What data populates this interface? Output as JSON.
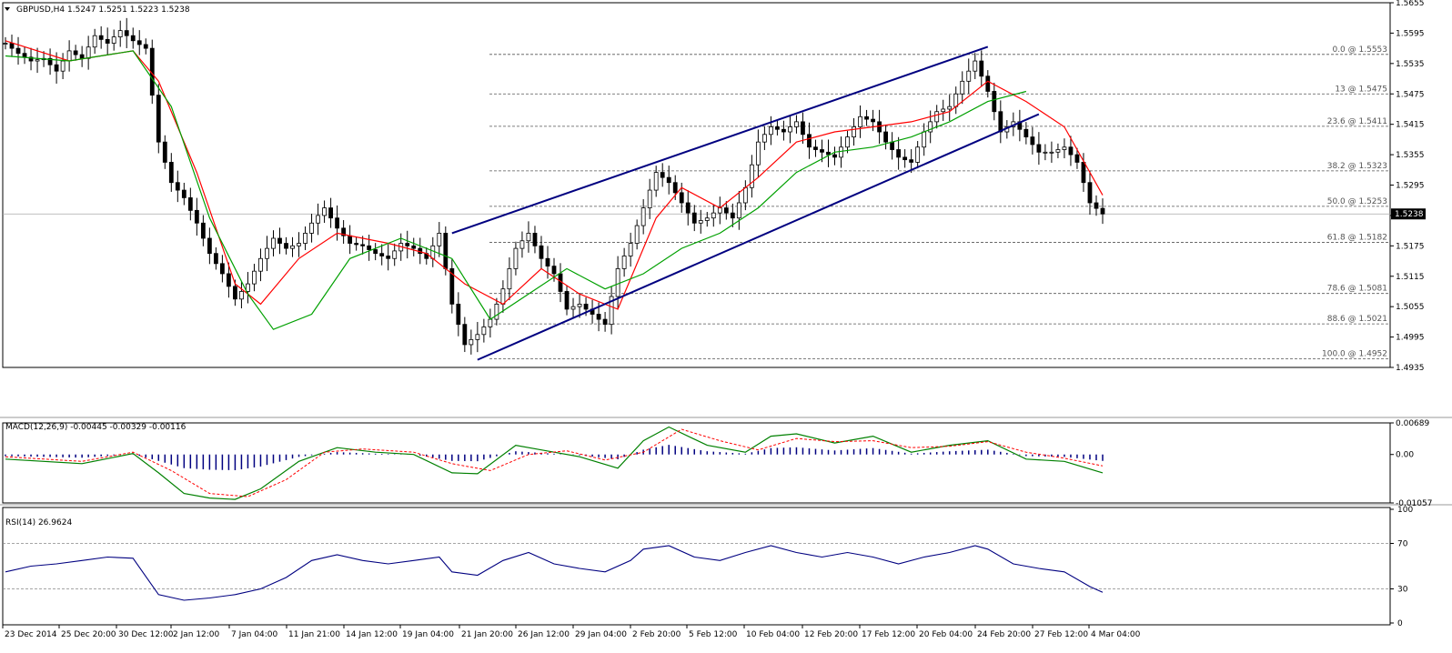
{
  "chart_data": [
    {
      "type": "candlestick",
      "title": "GBPUSD,H4",
      "ohlc_header": [
        "1.5247",
        "1.5251",
        "1.5223",
        "1.5238"
      ],
      "last_price": "1.5238",
      "y_ticks": [
        "1.5655",
        "1.5595",
        "1.5535",
        "1.5475",
        "1.5415",
        "1.5355",
        "1.5295",
        "1.5235",
        "1.5175",
        "1.5115",
        "1.5055",
        "1.4995",
        "1.4935"
      ],
      "ylim": [
        1.4935,
        1.5655
      ],
      "x_ticks": [
        "23 Dec 2014",
        "25 Dec 20:00",
        "30 Dec 12:00",
        "2 Jan 12:00",
        "7 Jan 04:00",
        "11 Jan 21:00",
        "14 Jan 12:00",
        "19 Jan 04:00",
        "21 Jan 20:00",
        "26 Jan 12:00",
        "29 Jan 04:00",
        "2 Feb 20:00",
        "5 Feb 12:00",
        "10 Feb 04:00",
        "12 Feb 20:00",
        "17 Feb 12:00",
        "20 Feb 04:00",
        "24 Feb 20:00",
        "27 Feb 12:00",
        "4 Mar 04:00"
      ],
      "fibonacci": [
        {
          "label": "0.0 @ 1.5553",
          "value": 1.5553
        },
        {
          "label": "13 @ 1.5475",
          "value": 1.5475
        },
        {
          "label": "23.6 @ 1.5411",
          "value": 1.5411
        },
        {
          "label": "38.2 @ 1.5323",
          "value": 1.5323
        },
        {
          "label": "50.0 @ 1.5253",
          "value": 1.5253
        },
        {
          "label": "61.8 @ 1.5182",
          "value": 1.5182
        },
        {
          "label": "78.6 @ 1.5081",
          "value": 1.5081
        },
        {
          "label": "88.6 @ 1.5021",
          "value": 1.5021
        },
        {
          "label": "100.0 @ 1.4952",
          "value": 1.4952
        }
      ],
      "price_path": [
        [
          0,
          1.5575
        ],
        [
          2,
          1.5555
        ],
        [
          4,
          1.554
        ],
        [
          6,
          1.5545
        ],
        [
          8,
          1.552
        ],
        [
          10,
          1.556
        ],
        [
          12,
          1.5545
        ],
        [
          14,
          1.559
        ],
        [
          16,
          1.5575
        ],
        [
          18,
          1.56
        ],
        [
          20,
          1.558
        ],
        [
          22,
          1.5565
        ],
        [
          24,
          1.538
        ],
        [
          26,
          1.53
        ],
        [
          28,
          1.527
        ],
        [
          30,
          1.522
        ],
        [
          32,
          1.516
        ],
        [
          34,
          1.512
        ],
        [
          36,
          1.507
        ],
        [
          38,
          1.51
        ],
        [
          40,
          1.515
        ],
        [
          42,
          1.519
        ],
        [
          44,
          1.517
        ],
        [
          46,
          1.518
        ],
        [
          48,
          1.522
        ],
        [
          50,
          1.525
        ],
        [
          52,
          1.521
        ],
        [
          54,
          1.518
        ],
        [
          56,
          1.5175
        ],
        [
          58,
          1.516
        ],
        [
          60,
          1.515
        ],
        [
          62,
          1.518
        ],
        [
          64,
          1.517
        ],
        [
          66,
          1.515
        ],
        [
          68,
          1.52
        ],
        [
          70,
          1.506
        ],
        [
          72,
          1.498
        ],
        [
          74,
          1.5
        ],
        [
          76,
          1.503
        ],
        [
          78,
          1.509
        ],
        [
          80,
          1.517
        ],
        [
          82,
          1.52
        ],
        [
          84,
          1.515
        ],
        [
          86,
          1.512
        ],
        [
          88,
          1.505
        ],
        [
          90,
          1.506
        ],
        [
          92,
          1.504
        ],
        [
          94,
          1.502
        ],
        [
          96,
          1.513
        ],
        [
          98,
          1.518
        ],
        [
          100,
          1.525
        ],
        [
          102,
          1.532
        ],
        [
          104,
          1.53
        ],
        [
          106,
          1.526
        ],
        [
          108,
          1.522
        ],
        [
          110,
          1.523
        ],
        [
          112,
          1.525
        ],
        [
          114,
          1.523
        ],
        [
          116,
          1.529
        ],
        [
          118,
          1.538
        ],
        [
          120,
          1.541
        ],
        [
          122,
          1.54
        ],
        [
          124,
          1.542
        ],
        [
          126,
          1.537
        ],
        [
          128,
          1.536
        ],
        [
          130,
          1.535
        ],
        [
          132,
          1.539
        ],
        [
          134,
          1.543
        ],
        [
          136,
          1.542
        ],
        [
          138,
          1.538
        ],
        [
          140,
          1.535
        ],
        [
          142,
          1.534
        ],
        [
          144,
          1.54
        ],
        [
          146,
          1.544
        ],
        [
          148,
          1.545
        ],
        [
          150,
          1.55
        ],
        [
          152,
          1.554
        ],
        [
          154,
          1.548
        ],
        [
          156,
          1.54
        ],
        [
          158,
          1.542
        ],
        [
          160,
          1.539
        ],
        [
          162,
          1.536
        ],
        [
          164,
          1.536
        ],
        [
          166,
          1.537
        ],
        [
          168,
          1.534
        ],
        [
          170,
          1.526
        ],
        [
          172,
          1.5238
        ]
      ],
      "moving_averages": [
        {
          "name": "",
          "color": "#ff0000",
          "values": [
            [
              0,
              1.558
            ],
            [
              10,
              1.554
            ],
            [
              20,
              1.556
            ],
            [
              24,
              1.55
            ],
            [
              30,
              1.532
            ],
            [
              36,
              1.51
            ],
            [
              40,
              1.506
            ],
            [
              46,
              1.515
            ],
            [
              52,
              1.52
            ],
            [
              60,
              1.518
            ],
            [
              66,
              1.516
            ],
            [
              72,
              1.51
            ],
            [
              78,
              1.506
            ],
            [
              84,
              1.513
            ],
            [
              90,
              1.508
            ],
            [
              96,
              1.505
            ],
            [
              102,
              1.523
            ],
            [
              106,
              1.529
            ],
            [
              112,
              1.525
            ],
            [
              118,
              1.531
            ],
            [
              124,
              1.538
            ],
            [
              130,
              1.54
            ],
            [
              136,
              1.541
            ],
            [
              142,
              1.542
            ],
            [
              148,
              1.544
            ],
            [
              154,
              1.55
            ],
            [
              160,
              1.546
            ],
            [
              166,
              1.541
            ],
            [
              172,
              1.5275
            ]
          ]
        },
        {
          "name": "",
          "color": "#00a000",
          "values": [
            [
              0,
              1.555
            ],
            [
              10,
              1.554
            ],
            [
              20,
              1.556
            ],
            [
              26,
              1.545
            ],
            [
              32,
              1.523
            ],
            [
              38,
              1.508
            ],
            [
              42,
              1.501
            ],
            [
              48,
              1.504
            ],
            [
              54,
              1.515
            ],
            [
              62,
              1.519
            ],
            [
              70,
              1.515
            ],
            [
              76,
              1.503
            ],
            [
              82,
              1.508
            ],
            [
              88,
              1.513
            ],
            [
              94,
              1.509
            ],
            [
              100,
              1.512
            ],
            [
              106,
              1.517
            ],
            [
              112,
              1.52
            ],
            [
              118,
              1.525
            ],
            [
              124,
              1.532
            ],
            [
              130,
              1.536
            ],
            [
              136,
              1.537
            ],
            [
              142,
              1.539
            ],
            [
              148,
              1.542
            ],
            [
              154,
              1.546
            ],
            [
              160,
              1.548
            ]
          ]
        }
      ],
      "trend_channel": [
        {
          "from": [
            70,
            1.52
          ],
          "to": [
            154,
            1.5568
          ]
        },
        {
          "from": [
            74,
            1.495
          ],
          "to": [
            162,
            1.5435
          ]
        }
      ]
    },
    {
      "type": "histogram+line",
      "title": "MACD(12,26,9)",
      "values_header": [
        "-0.00445",
        "-0.00329",
        "-0.00116"
      ],
      "y_ticks": [
        "0.00689",
        "0.00",
        "-0.01057"
      ],
      "ylim": [
        -0.01057,
        0.00689
      ],
      "macd": [
        [
          0,
          -0.001
        ],
        [
          12,
          -0.002
        ],
        [
          20,
          0.0002
        ],
        [
          24,
          -0.004
        ],
        [
          28,
          -0.0085
        ],
        [
          32,
          -0.0095
        ],
        [
          36,
          -0.0098
        ],
        [
          40,
          -0.0075
        ],
        [
          46,
          -0.0015
        ],
        [
          52,
          0.0015
        ],
        [
          58,
          0.0005
        ],
        [
          64,
          0.0
        ],
        [
          70,
          -0.004
        ],
        [
          74,
          -0.0042
        ],
        [
          80,
          0.002
        ],
        [
          84,
          0.001
        ],
        [
          90,
          -0.0005
        ],
        [
          96,
          -0.003
        ],
        [
          100,
          0.003
        ],
        [
          104,
          0.006
        ],
        [
          110,
          0.002
        ],
        [
          116,
          0.0005
        ],
        [
          120,
          0.004
        ],
        [
          124,
          0.0045
        ],
        [
          130,
          0.0025
        ],
        [
          136,
          0.004
        ],
        [
          142,
          0.0005
        ],
        [
          148,
          0.002
        ],
        [
          154,
          0.003
        ],
        [
          160,
          -0.001
        ],
        [
          166,
          -0.0015
        ],
        [
          172,
          -0.004
        ]
      ],
      "signal": [
        [
          0,
          -0.0005
        ],
        [
          12,
          -0.0015
        ],
        [
          20,
          0.0005
        ],
        [
          26,
          -0.0035
        ],
        [
          32,
          -0.0085
        ],
        [
          38,
          -0.0092
        ],
        [
          44,
          -0.0055
        ],
        [
          50,
          0.0005
        ],
        [
          56,
          0.0012
        ],
        [
          64,
          0.0005
        ],
        [
          70,
          -0.002
        ],
        [
          76,
          -0.0035
        ],
        [
          82,
          0.0
        ],
        [
          88,
          0.0008
        ],
        [
          94,
          -0.0012
        ],
        [
          100,
          0.0005
        ],
        [
          106,
          0.0055
        ],
        [
          112,
          0.003
        ],
        [
          118,
          0.001
        ],
        [
          124,
          0.0035
        ],
        [
          130,
          0.0028
        ],
        [
          136,
          0.003
        ],
        [
          142,
          0.0015
        ],
        [
          148,
          0.0018
        ],
        [
          154,
          0.0028
        ],
        [
          160,
          0.0005
        ],
        [
          166,
          -0.0008
        ],
        [
          172,
          -0.0025
        ]
      ]
    },
    {
      "type": "line",
      "title": "RSI(14) 26.9624",
      "y_ticks": [
        "100",
        "70",
        "30",
        "0"
      ],
      "ylim": [
        0,
        100
      ],
      "levels": [
        70,
        30
      ],
      "values": [
        [
          0,
          45
        ],
        [
          4,
          50
        ],
        [
          8,
          52
        ],
        [
          12,
          55
        ],
        [
          16,
          58
        ],
        [
          20,
          57
        ],
        [
          24,
          25
        ],
        [
          28,
          20
        ],
        [
          32,
          22
        ],
        [
          36,
          25
        ],
        [
          40,
          30
        ],
        [
          44,
          40
        ],
        [
          48,
          55
        ],
        [
          52,
          60
        ],
        [
          56,
          55
        ],
        [
          60,
          52
        ],
        [
          64,
          55
        ],
        [
          68,
          58
        ],
        [
          70,
          45
        ],
        [
          74,
          42
        ],
        [
          78,
          55
        ],
        [
          82,
          62
        ],
        [
          86,
          52
        ],
        [
          90,
          48
        ],
        [
          94,
          45
        ],
        [
          98,
          55
        ],
        [
          100,
          65
        ],
        [
          104,
          68
        ],
        [
          108,
          58
        ],
        [
          112,
          55
        ],
        [
          116,
          62
        ],
        [
          120,
          68
        ],
        [
          124,
          62
        ],
        [
          128,
          58
        ],
        [
          132,
          62
        ],
        [
          136,
          58
        ],
        [
          140,
          52
        ],
        [
          144,
          58
        ],
        [
          148,
          62
        ],
        [
          152,
          68
        ],
        [
          154,
          65
        ],
        [
          158,
          52
        ],
        [
          162,
          48
        ],
        [
          166,
          45
        ],
        [
          170,
          32
        ],
        [
          172,
          27
        ]
      ]
    }
  ]
}
